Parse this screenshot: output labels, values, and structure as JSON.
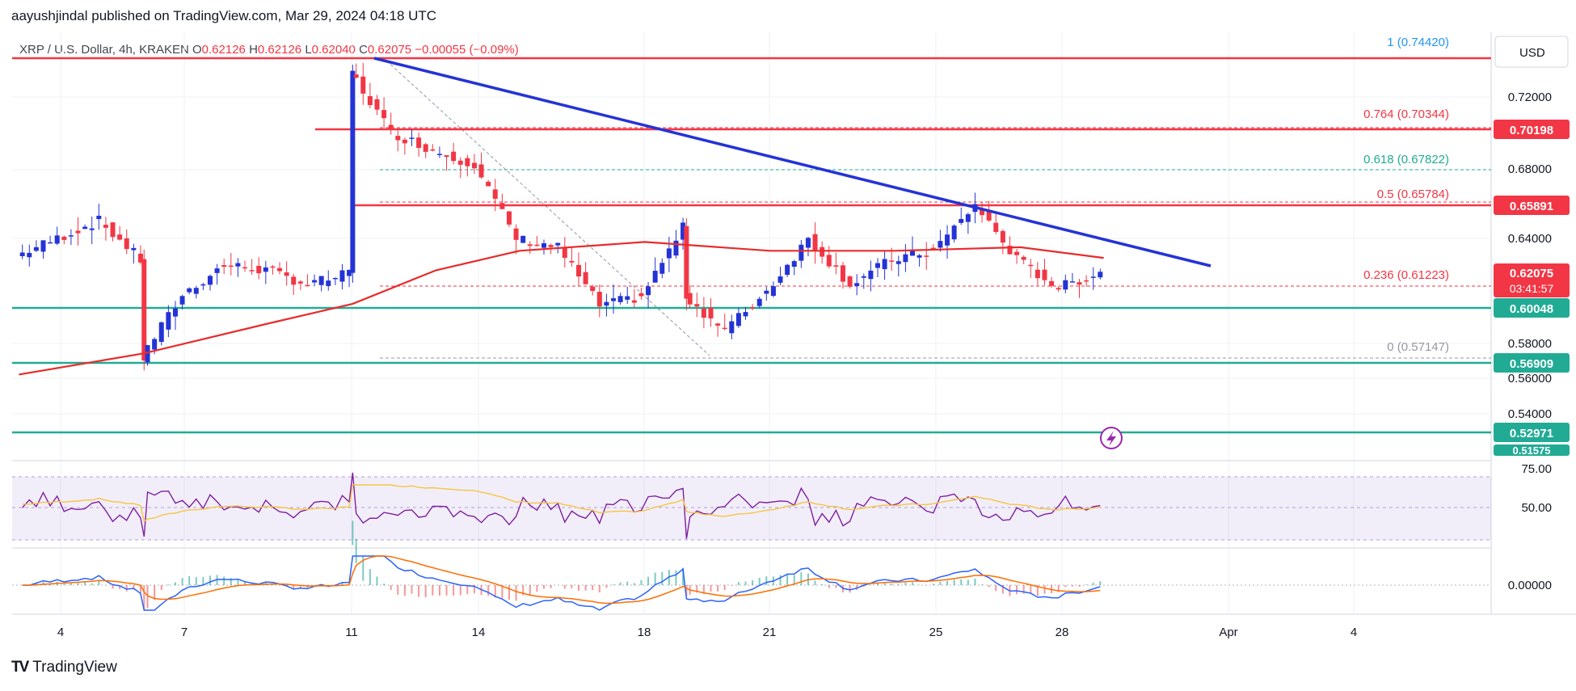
{
  "header": {
    "credit": "aayushjindal published on TradingView.com, Mar 29, 2024 04:18 UTC"
  },
  "legend": {
    "symbol": "XRP / U.S. Dollar, 4h, KRAKEN",
    "o_label": "O",
    "o": "0.62126",
    "h_label": "H",
    "h": "0.62126",
    "l_label": "L",
    "l": "0.62040",
    "c_label": "C",
    "c": "0.62075",
    "change": "−0.00055 (−0.09%)"
  },
  "price_axis": {
    "currency": "USD",
    "ticks": [
      "0.72000",
      "0.68000",
      "0.64000",
      "0.58000",
      "0.56000",
      "0.54000"
    ],
    "rsi_ticks": [
      "75.00",
      "50.00"
    ],
    "macd_ticks": [
      "0.00000"
    ],
    "colors": {
      "red": "#f23645",
      "green": "#22ab94",
      "blue": "#2962ff",
      "purple": "#7e57c2"
    }
  },
  "badges": [
    {
      "label": "0.70198",
      "color": "#f23645"
    },
    {
      "label": "0.65891",
      "color": "#f23645"
    },
    {
      "label": "0.62075",
      "time": "03:41:57",
      "color": "#f23645"
    },
    {
      "label": "0.60048",
      "color": "#22ab94"
    },
    {
      "label": "0.56909",
      "color": "#22ab94"
    },
    {
      "label": "0.52971",
      "color": "#22ab94"
    },
    {
      "label": "0.51575",
      "color": "#22ab94"
    }
  ],
  "fib_labels": [
    {
      "label": "1 (0.74420)",
      "level": 0.7442
    },
    {
      "label": "0.764 (0.70344)",
      "level": 0.70344
    },
    {
      "label": "0.618 (0.67822)",
      "level": 0.67822
    },
    {
      "label": "0.5 (0.65784)",
      "level": 0.65784
    },
    {
      "label": "0.236 (0.61223)",
      "level": 0.61223
    },
    {
      "label": "0 (0.57147)",
      "level": 0.57147
    }
  ],
  "time_axis": {
    "labels": [
      "4",
      "7",
      "11",
      "14",
      "18",
      "21",
      "25",
      "28",
      "Apr",
      "4"
    ]
  },
  "brand": {
    "name": "TradingView",
    "logo": "TV"
  },
  "chart_data": {
    "type": "candlestick",
    "title": "XRP / U.S. Dollar, 4h, KRAKEN",
    "ylim": [
      0.515,
      0.76
    ],
    "horizontal_levels": [
      {
        "value": 0.7442,
        "color": "red"
      },
      {
        "value": 0.70198,
        "color": "red"
      },
      {
        "value": 0.65891,
        "color": "red"
      },
      {
        "value": 0.60048,
        "color": "green"
      },
      {
        "value": 0.56909,
        "color": "green"
      },
      {
        "value": 0.52971,
        "color": "green"
      }
    ],
    "trendline": {
      "from": [
        "Mar 11",
        0.743
      ],
      "to": [
        "Mar 30",
        0.624
      ],
      "color": "blue"
    },
    "close_path": [
      {
        "d": "Mar 3",
        "v": 0.63
      },
      {
        "d": "Mar 4",
        "v": 0.64
      },
      {
        "d": "Mar 5",
        "v": 0.65
      },
      {
        "d": "Mar 6",
        "v": 0.628
      },
      {
        "d": "Mar 6",
        "v": 0.572
      },
      {
        "d": "Mar 7",
        "v": 0.608
      },
      {
        "d": "Mar 8",
        "v": 0.625
      },
      {
        "d": "Mar 9",
        "v": 0.622
      },
      {
        "d": "Mar 10",
        "v": 0.614
      },
      {
        "d": "Mar 11",
        "v": 0.62
      },
      {
        "d": "Mar 11",
        "v": 0.735
      },
      {
        "d": "Mar 12",
        "v": 0.7
      },
      {
        "d": "Mar 13",
        "v": 0.69
      },
      {
        "d": "Mar 14",
        "v": 0.682
      },
      {
        "d": "Mar 15",
        "v": 0.64
      },
      {
        "d": "Mar 16",
        "v": 0.635
      },
      {
        "d": "Mar 17",
        "v": 0.602
      },
      {
        "d": "Mar 18",
        "v": 0.607
      },
      {
        "d": "Mar 19",
        "v": 0.646
      },
      {
        "d": "Mar 19",
        "v": 0.608
      },
      {
        "d": "Mar 20",
        "v": 0.588
      },
      {
        "d": "Mar 21",
        "v": 0.61
      },
      {
        "d": "Mar 22",
        "v": 0.64
      },
      {
        "d": "Mar 23",
        "v": 0.614
      },
      {
        "d": "Mar 24",
        "v": 0.628
      },
      {
        "d": "Mar 25",
        "v": 0.633
      },
      {
        "d": "Mar 26",
        "v": 0.659
      },
      {
        "d": "Mar 27",
        "v": 0.628
      },
      {
        "d": "Mar 28",
        "v": 0.612
      },
      {
        "d": "Mar 29",
        "v": 0.621
      }
    ],
    "ma_path": [
      {
        "d": "Mar 3",
        "v": 0.563
      },
      {
        "d": "Mar 6",
        "v": 0.575
      },
      {
        "d": "Mar 9",
        "v": 0.592
      },
      {
        "d": "Mar 11",
        "v": 0.603
      },
      {
        "d": "Mar 13",
        "v": 0.622
      },
      {
        "d": "Mar 15",
        "v": 0.633
      },
      {
        "d": "Mar 18",
        "v": 0.638
      },
      {
        "d": "Mar 21",
        "v": 0.633
      },
      {
        "d": "Mar 24",
        "v": 0.633
      },
      {
        "d": "Mar 27",
        "v": 0.635
      },
      {
        "d": "Mar 29",
        "v": 0.629
      }
    ]
  }
}
